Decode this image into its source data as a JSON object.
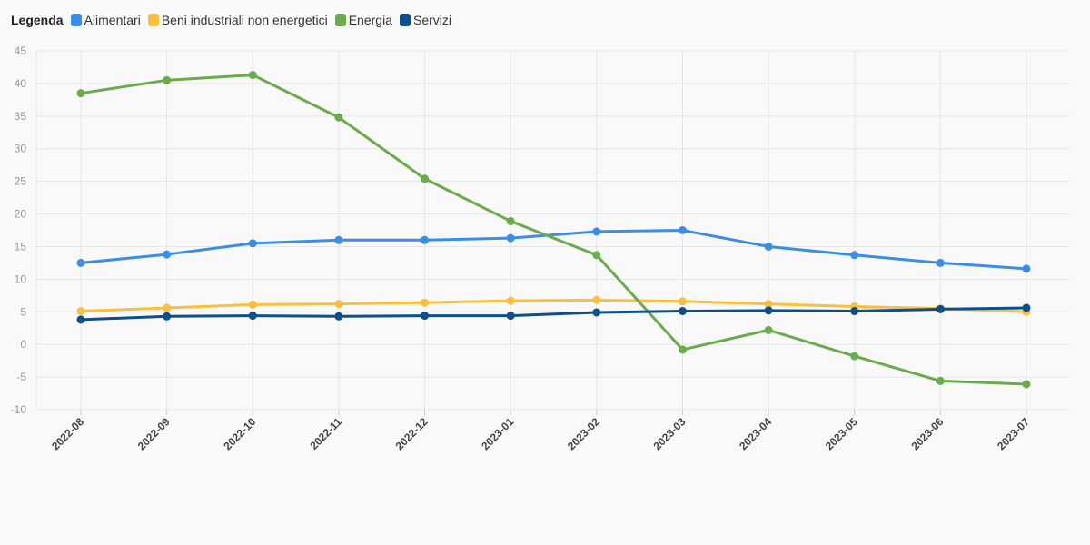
{
  "legend": {
    "title": "Legenda",
    "items": [
      {
        "label": "Alimentari",
        "color": "#3a8ee6"
      },
      {
        "label": "Beni industriali non energetici",
        "color": "#fbbf3e"
      },
      {
        "label": "Energia",
        "color": "#6aac4a"
      },
      {
        "label": "Servizi",
        "color": "#0d4f8a"
      }
    ]
  },
  "chart_data": {
    "type": "line",
    "title": "",
    "xlabel": "",
    "ylabel": "",
    "x": [
      "2022-08",
      "2022-09",
      "2022-10",
      "2022-11",
      "2022-12",
      "2023-01",
      "2023-02",
      "2023-03",
      "2023-04",
      "2023-05",
      "2023-06",
      "2023-07"
    ],
    "ylim": [
      -10,
      45
    ],
    "yticks": [
      45,
      40,
      35,
      30,
      25,
      20,
      15,
      10,
      5,
      0,
      -5,
      -10
    ],
    "grid": true,
    "legend_position": "top-left",
    "series": [
      {
        "name": "Alimentari",
        "color": "#3a8ee6",
        "values": [
          12.5,
          13.8,
          15.5,
          16.0,
          16.0,
          16.3,
          17.3,
          17.5,
          15.0,
          13.7,
          12.5,
          11.6
        ]
      },
      {
        "name": "Beni industriali non energetici",
        "color": "#fbbf3e",
        "values": [
          5.1,
          5.6,
          6.1,
          6.2,
          6.4,
          6.7,
          6.8,
          6.6,
          6.2,
          5.8,
          5.5,
          5.0
        ]
      },
      {
        "name": "Energia",
        "color": "#6aac4a",
        "values": [
          38.5,
          40.5,
          41.3,
          34.8,
          25.4,
          18.9,
          13.7,
          -0.8,
          2.2,
          -1.8,
          -5.6,
          -6.1
        ]
      },
      {
        "name": "Servizi",
        "color": "#0d4f8a",
        "values": [
          3.8,
          4.3,
          4.4,
          4.3,
          4.4,
          4.4,
          4.9,
          5.1,
          5.2,
          5.1,
          5.4,
          5.6
        ]
      }
    ]
  }
}
